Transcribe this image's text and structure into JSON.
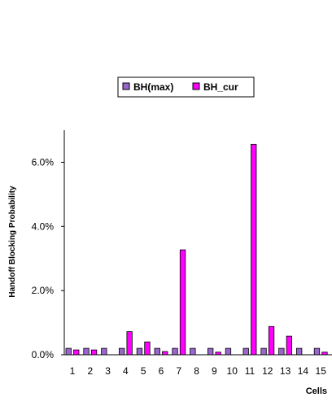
{
  "chart_data": {
    "type": "bar",
    "title": "",
    "xlabel": "Cells",
    "ylabel": "Handoff Blocking Probability",
    "categories": [
      "1",
      "2",
      "3",
      "4",
      "5",
      "6",
      "7",
      "8",
      "9",
      "10",
      "11",
      "12",
      "13",
      "14",
      "15"
    ],
    "series": [
      {
        "name": "BH(max)",
        "color": "#9966cc",
        "values": [
          0.002,
          0.002,
          0.002,
          0.002,
          0.002,
          0.002,
          0.002,
          0.002,
          0.002,
          0.002,
          0.002,
          0.002,
          0.002,
          0.002,
          0.002
        ]
      },
      {
        "name": "BH_cur",
        "color": "#ff00ff",
        "values": [
          0.0015,
          0.0015,
          0.0,
          0.0072,
          0.004,
          0.001,
          0.0327,
          0.0,
          0.0008,
          0.0,
          0.0656,
          0.0088,
          0.0058,
          0.0,
          0.0008
        ]
      }
    ],
    "ylim": [
      0,
      0.07
    ],
    "yticks": [
      0,
      0.02,
      0.04,
      0.06
    ],
    "ytick_labels": [
      "0.0%",
      "2.0%",
      "4.0%",
      "6.0%"
    ],
    "grid": false,
    "legend_position": "top-center"
  }
}
